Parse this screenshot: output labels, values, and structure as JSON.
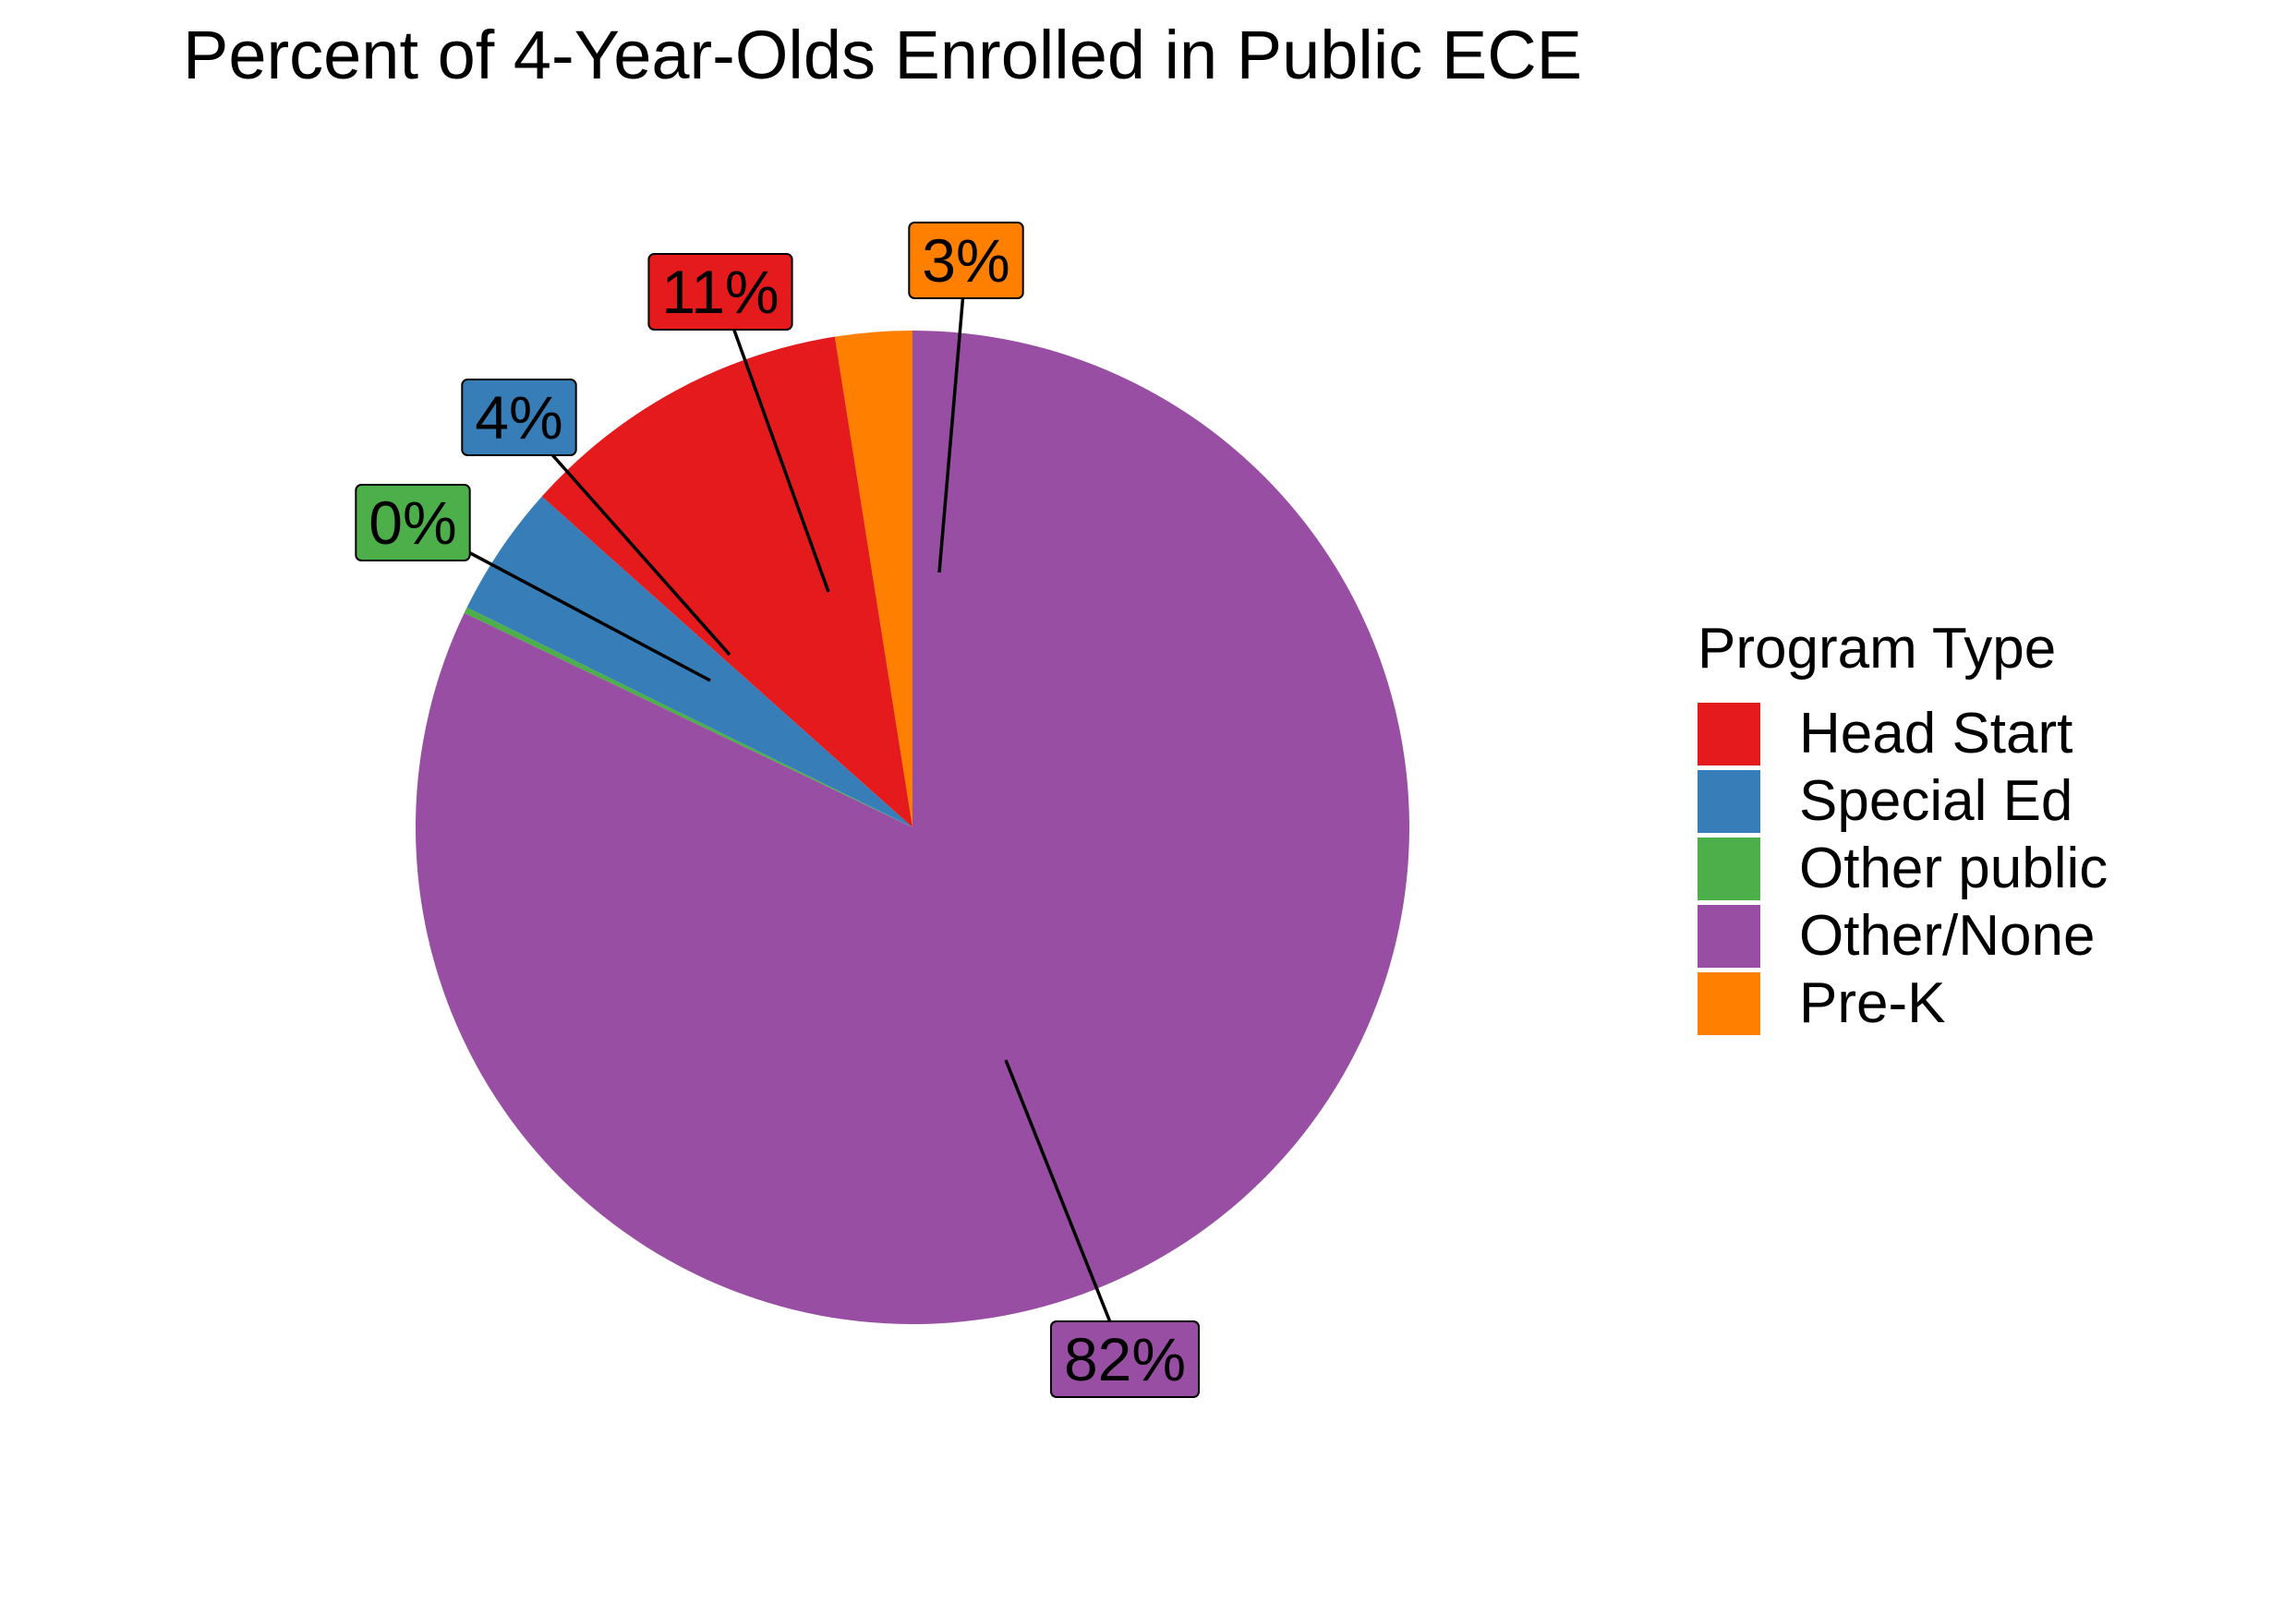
{
  "title": "Percent of 4-Year-Olds Enrolled in Public ECE",
  "legend": {
    "title": "Program Type"
  },
  "chart_data": {
    "type": "pie",
    "title": "Percent of 4-Year-Olds Enrolled in Public ECE",
    "legend_title": "Program Type",
    "legend_placement": "right",
    "direction": "counterclockwise",
    "start_angle": "top",
    "slices": [
      {
        "name": "Pre-K",
        "value": 2.5,
        "label": "3%",
        "color": "#FF7F00"
      },
      {
        "name": "Head Start",
        "value": 10.9,
        "label": "11%",
        "color": "#E41A1C"
      },
      {
        "name": "Special Ed",
        "value": 4.3,
        "label": "4%",
        "color": "#377EB8"
      },
      {
        "name": "Other public",
        "value": 0.2,
        "label": "0%",
        "color": "#4DAF4A"
      },
      {
        "name": "Other/None",
        "value": 82.1,
        "label": "82%",
        "color": "#984EA3"
      }
    ],
    "legend_order": [
      "Head Start",
      "Special Ed",
      "Other public",
      "Other/None",
      "Pre-K"
    ]
  }
}
